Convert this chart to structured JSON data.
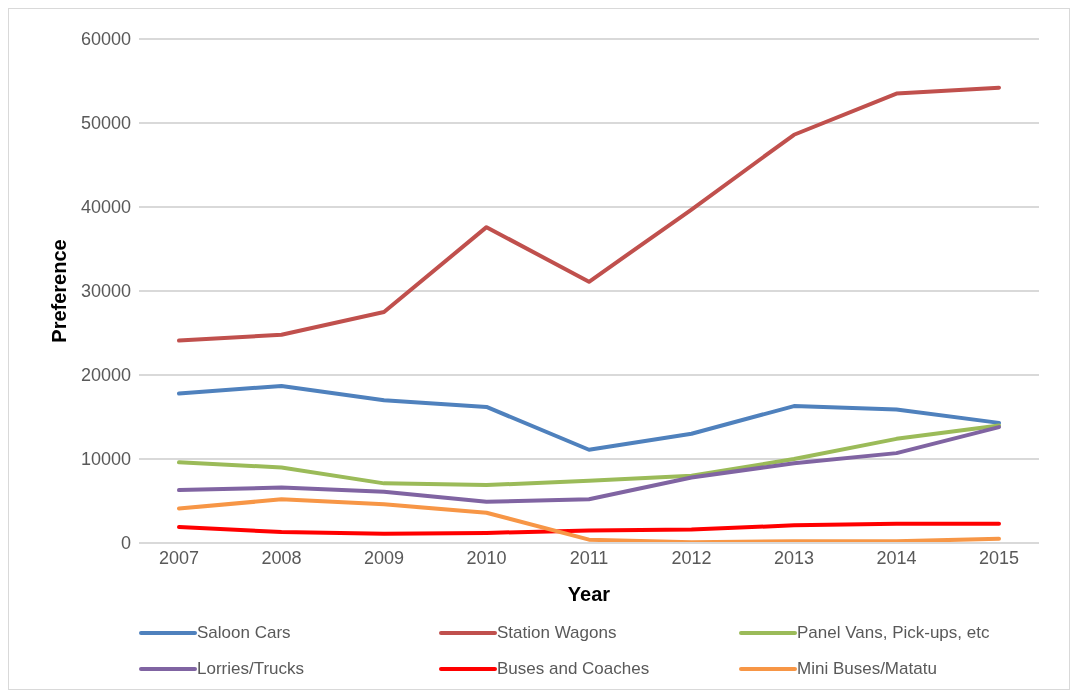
{
  "chart_data": {
    "type": "line",
    "xlabel": "Year",
    "ylabel": "Preference",
    "categories": [
      "2007",
      "2008",
      "2009",
      "2010",
      "2011",
      "2012",
      "2013",
      "2014",
      "2015"
    ],
    "series": [
      {
        "name": "Saloon Cars",
        "color": "#4f81bd",
        "values": [
          17800,
          18700,
          17000,
          16200,
          11100,
          13000,
          16300,
          15900,
          14300
        ]
      },
      {
        "name": "Station Wagons",
        "color": "#c0504d",
        "values": [
          24100,
          24800,
          27500,
          37600,
          31100,
          39700,
          48600,
          53500,
          54200
        ]
      },
      {
        "name": "Panel Vans, Pick-ups, etc",
        "color": "#9bbb59",
        "values": [
          9600,
          9000,
          7100,
          6900,
          7400,
          8000,
          10000,
          12400,
          14000
        ]
      },
      {
        "name": "Lorries/Trucks",
        "color": "#8064a2",
        "values": [
          6300,
          6600,
          6100,
          4900,
          5200,
          7800,
          9500,
          10700,
          13800
        ]
      },
      {
        "name": "Buses and Coaches",
        "color": "#ff0000",
        "values": [
          1900,
          1300,
          1100,
          1200,
          1500,
          1600,
          2100,
          2300,
          2300
        ]
      },
      {
        "name": "Mini Buses/Matatu",
        "color": "#f79646",
        "values": [
          4100,
          5200,
          4600,
          3600,
          400,
          100,
          200,
          200,
          500
        ]
      }
    ],
    "ylim": [
      0,
      60000
    ],
    "yticks": [
      0,
      10000,
      20000,
      30000,
      40000,
      50000,
      60000
    ],
    "grid": "y",
    "legend": "bottom",
    "marker": "none",
    "line_style": "solid"
  }
}
